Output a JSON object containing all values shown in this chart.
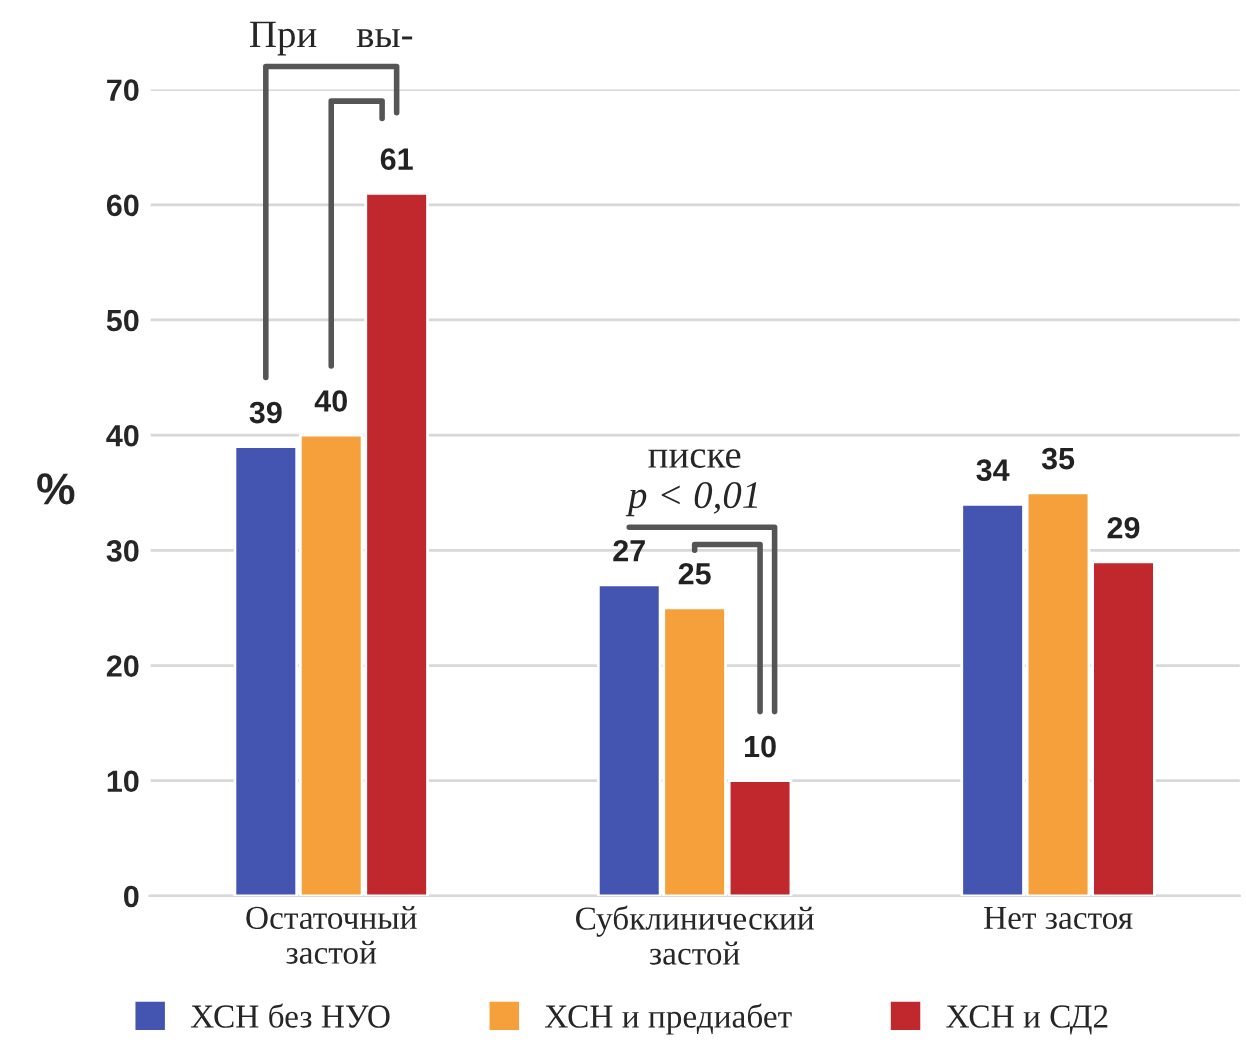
{
  "chart_data": {
    "type": "bar",
    "ylabel": "%",
    "categories": [
      "Остаточный\nзастой",
      "Субклинический\nзастой",
      "Нет застоя"
    ],
    "series": [
      {
        "name": "ХСН без НУО",
        "color": "#4355b0",
        "values": [
          39,
          27,
          34
        ]
      },
      {
        "name": "ХСН и предиабет",
        "color": "#f5a03a",
        "values": [
          40,
          25,
          35
        ]
      },
      {
        "name": "ХСН и СД2",
        "color": "#c0282d",
        "values": [
          61,
          10,
          29
        ]
      }
    ],
    "ylim": [
      0,
      70
    ],
    "yticks": [
      0,
      10,
      20,
      30,
      40,
      50,
      60,
      70
    ],
    "grid": "y",
    "legend": "bottom",
    "data_labels": true,
    "annotations": [
      "При    вы-",
      "писке",
      "p < 0,01"
    ]
  }
}
